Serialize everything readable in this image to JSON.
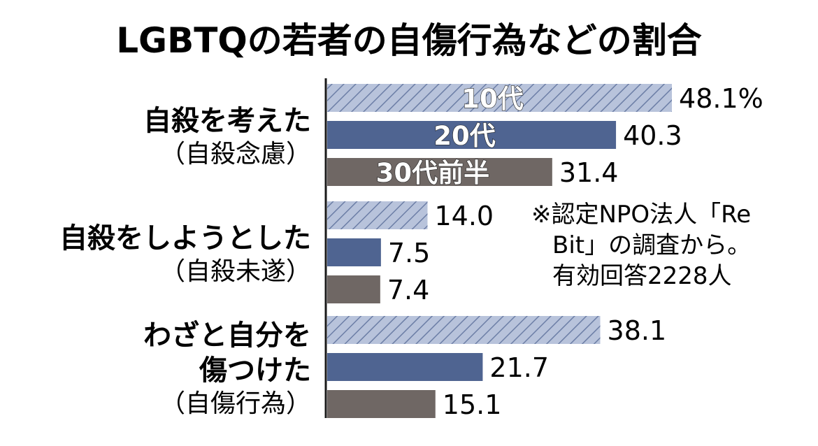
{
  "chart_data": {
    "type": "bar",
    "orientation": "horizontal",
    "title": "LGBTQの若者の自傷行為などの割合",
    "categories": [
      {
        "lines": [
          "自殺を考えた"
        ],
        "sub": "（自殺念慮）"
      },
      {
        "lines": [
          "自殺をしようとした"
        ],
        "sub": "（自殺未遂）"
      },
      {
        "lines": [
          "わざと自分を",
          "傷つけた"
        ],
        "sub": "（自傷行為）"
      }
    ],
    "series": [
      {
        "name": "10代",
        "values": [
          48.1,
          14.0,
          38.1
        ],
        "labels": [
          "48.1%",
          "14.0",
          "38.1"
        ],
        "color": "#a9b6d2",
        "pattern": "hatch"
      },
      {
        "name": "20代",
        "values": [
          40.3,
          7.5,
          21.7
        ],
        "labels": [
          "40.3",
          "7.5",
          "21.7"
        ],
        "color": "#4f6491",
        "pattern": "solid"
      },
      {
        "name": "30代前半",
        "values": [
          31.4,
          7.4,
          15.1
        ],
        "labels": [
          "31.4",
          "7.4",
          "15.1"
        ],
        "color": "#6f6764",
        "pattern": "solid"
      }
    ],
    "xlim": [
      0,
      50
    ],
    "grid": false,
    "legend": "inside first bars",
    "note": [
      "※認定NPO法人「Re",
      "Bit」の調査から。",
      "有効回答2228人"
    ]
  }
}
